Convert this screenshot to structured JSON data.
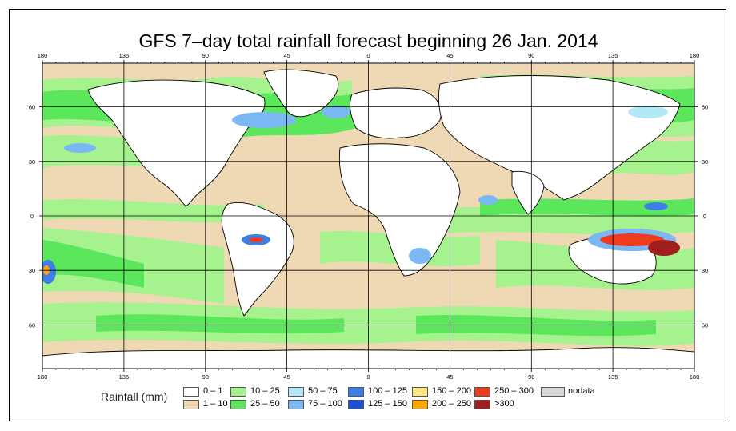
{
  "title": "GFS 7–day total rainfall forecast beginning 26 Jan. 2014",
  "axes": {
    "lon_ticks": [
      "180",
      "135",
      "90",
      "45",
      "0",
      "45",
      "90",
      "135",
      "180"
    ],
    "lat_ticks": [
      "60",
      "30",
      "0",
      "30",
      "60"
    ]
  },
  "legend": {
    "heading": "Rainfall (mm)",
    "items": [
      {
        "label": "0 – 1",
        "color": "#ffffff"
      },
      {
        "label": "1 – 10",
        "color": "#efd9b4"
      },
      {
        "label": "10 – 25",
        "color": "#a6f28f"
      },
      {
        "label": "25 – 50",
        "color": "#5ce65c"
      },
      {
        "label": "50 – 75",
        "color": "#b3e8f7"
      },
      {
        "label": "75 – 100",
        "color": "#79b8f2"
      },
      {
        "label": "100 – 125",
        "color": "#3d7fe6"
      },
      {
        "label": "125 – 150",
        "color": "#1a4fd6"
      },
      {
        "label": "150 – 200",
        "color": "#ffe680"
      },
      {
        "label": "200 – 250",
        "color": "#ffa500"
      },
      {
        "label": "250 – 300",
        "color": "#f03c1e"
      },
      {
        "label": ">300",
        "color": "#a01e1e"
      },
      {
        "label": "nodata",
        "color": "#d8d8d8"
      }
    ]
  },
  "colors": {
    "ocean_base": "#efd9b4",
    "land": "#ffffff",
    "light_rain": "#a6f28f",
    "moderate_rain": "#5ce65c",
    "heavy_rain": "#79b8f2",
    "very_heavy": "#3d7fe6",
    "extreme": "#f03c1e",
    "extreme_dark": "#a01e1e"
  }
}
